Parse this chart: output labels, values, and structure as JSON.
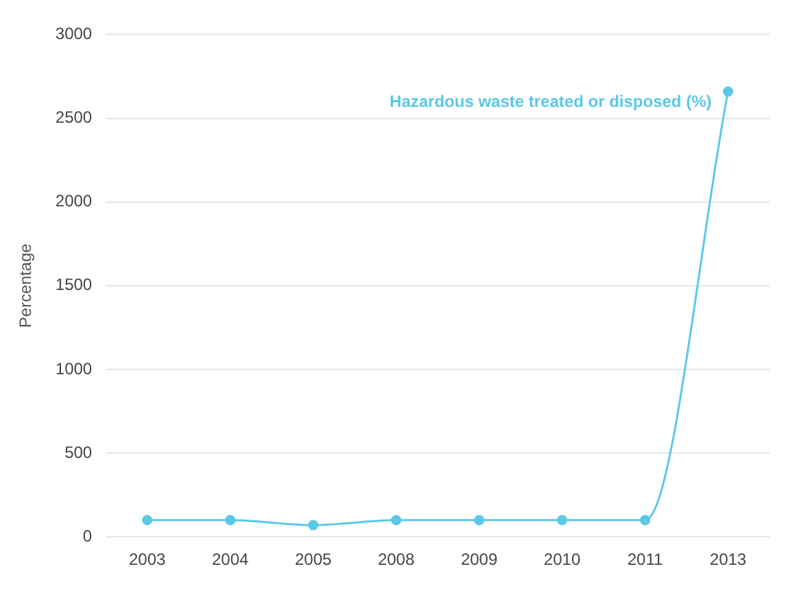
{
  "chart_data": {
    "type": "line",
    "ylabel": "Percentage",
    "categories": [
      "2003",
      "2004",
      "2005",
      "2008",
      "2009",
      "2010",
      "2011",
      "2013"
    ],
    "series": [
      {
        "name": "Hazardous waste treated or disposed (%)",
        "color": "#5bc8e8",
        "values": [
          100,
          100,
          70,
          100,
          100,
          100,
          100,
          2660
        ]
      }
    ],
    "ylim": [
      0,
      3000
    ],
    "yticks": [
      0,
      500,
      1000,
      1500,
      2000,
      2500,
      3000
    ],
    "grid": "y",
    "legend": false,
    "marker": "circle",
    "line_style": "solid"
  }
}
